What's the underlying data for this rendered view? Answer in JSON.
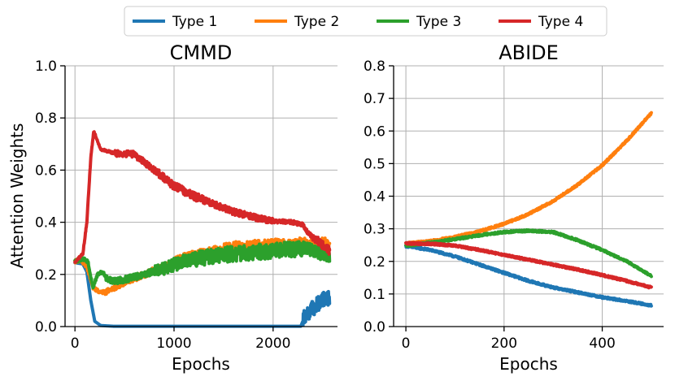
{
  "chart_data": [
    {
      "type": "line",
      "title": "CMMD",
      "xlabel": "Epochs",
      "ylabel": "Attention Weights",
      "xlim": [
        -100,
        2650
      ],
      "ylim": [
        0.0,
        1.0
      ],
      "xticks": [
        0,
        1000,
        2000
      ],
      "xtick_labels": [
        "0",
        "1000",
        "2000"
      ],
      "yticks": [
        0.0,
        0.2,
        0.4,
        0.6,
        0.8,
        1.0
      ],
      "ytick_labels": [
        "0.0",
        "0.2",
        "0.4",
        "0.6",
        "0.8",
        "1.0"
      ],
      "grid": true,
      "series": [
        {
          "name": "Type 1",
          "noise": [
            [
              2300,
              0.03
            ]
          ],
          "points": [
            [
              0,
              0.245
            ],
            [
              80,
              0.24
            ],
            [
              120,
              0.21
            ],
            [
              160,
              0.1
            ],
            [
              200,
              0.02
            ],
            [
              260,
              0.004
            ],
            [
              400,
              0.001
            ],
            [
              1000,
              0.001
            ],
            [
              2000,
              0.001
            ],
            [
              2280,
              0.001
            ],
            [
              2320,
              0.04
            ],
            [
              2400,
              0.07
            ],
            [
              2500,
              0.1
            ],
            [
              2570,
              0.115
            ]
          ]
        },
        {
          "name": "Type 2",
          "noise": [
            [
              0,
              0.006
            ],
            [
              300,
              0.012
            ],
            [
              1000,
              0.02
            ],
            [
              1500,
              0.025
            ]
          ],
          "points": [
            [
              0,
              0.25
            ],
            [
              60,
              0.255
            ],
            [
              120,
              0.23
            ],
            [
              180,
              0.15
            ],
            [
              260,
              0.13
            ],
            [
              350,
              0.14
            ],
            [
              500,
              0.17
            ],
            [
              700,
              0.2
            ],
            [
              900,
              0.23
            ],
            [
              1100,
              0.26
            ],
            [
              1300,
              0.28
            ],
            [
              1600,
              0.3
            ],
            [
              2000,
              0.31
            ],
            [
              2300,
              0.315
            ],
            [
              2450,
              0.315
            ],
            [
              2570,
              0.315
            ]
          ]
        },
        {
          "name": "Type 3",
          "noise": [
            [
              0,
              0.006
            ],
            [
              300,
              0.012
            ],
            [
              800,
              0.025
            ],
            [
              1200,
              0.03
            ],
            [
              2300,
              0.025
            ]
          ],
          "points": [
            [
              0,
              0.25
            ],
            [
              80,
              0.26
            ],
            [
              130,
              0.25
            ],
            [
              180,
              0.15
            ],
            [
              230,
              0.2
            ],
            [
              280,
              0.21
            ],
            [
              330,
              0.18
            ],
            [
              400,
              0.175
            ],
            [
              500,
              0.18
            ],
            [
              700,
              0.2
            ],
            [
              900,
              0.225
            ],
            [
              1100,
              0.25
            ],
            [
              1300,
              0.265
            ],
            [
              1600,
              0.28
            ],
            [
              2000,
              0.29
            ],
            [
              2300,
              0.3
            ],
            [
              2450,
              0.285
            ],
            [
              2570,
              0.27
            ]
          ]
        },
        {
          "name": "Type 4",
          "noise": [
            [
              0,
              0.004
            ],
            [
              400,
              0.012
            ],
            [
              800,
              0.015
            ],
            [
              1300,
              0.012
            ],
            [
              2000,
              0.007
            ],
            [
              2400,
              0.015
            ]
          ],
          "points": [
            [
              0,
              0.245
            ],
            [
              80,
              0.28
            ],
            [
              120,
              0.4
            ],
            [
              160,
              0.65
            ],
            [
              190,
              0.75
            ],
            [
              220,
              0.72
            ],
            [
              260,
              0.68
            ],
            [
              400,
              0.665
            ],
            [
              600,
              0.66
            ],
            [
              700,
              0.63
            ],
            [
              900,
              0.57
            ],
            [
              1000,
              0.54
            ],
            [
              1200,
              0.5
            ],
            [
              1400,
              0.47
            ],
            [
              1600,
              0.44
            ],
            [
              1800,
              0.42
            ],
            [
              2000,
              0.405
            ],
            [
              2200,
              0.4
            ],
            [
              2300,
              0.39
            ],
            [
              2350,
              0.36
            ],
            [
              2450,
              0.33
            ],
            [
              2570,
              0.29
            ]
          ]
        }
      ]
    },
    {
      "type": "line",
      "title": "ABIDE",
      "xlabel": "Epochs",
      "ylabel": "",
      "xlim": [
        -25,
        525
      ],
      "ylim": [
        0.0,
        0.8
      ],
      "xticks": [
        0,
        200,
        400
      ],
      "xtick_labels": [
        "0",
        "200",
        "400"
      ],
      "yticks": [
        0.0,
        0.1,
        0.2,
        0.3,
        0.4,
        0.5,
        0.6,
        0.7,
        0.8
      ],
      "ytick_labels": [
        "0.0",
        "0.1",
        "0.2",
        "0.3",
        "0.4",
        "0.5",
        "0.6",
        "0.7",
        "0.8"
      ],
      "grid": true,
      "series": [
        {
          "name": "Type 1",
          "noise": [
            [
              0,
              0.003
            ]
          ],
          "points": [
            [
              0,
              0.247
            ],
            [
              50,
              0.235
            ],
            [
              100,
              0.215
            ],
            [
              150,
              0.19
            ],
            [
              200,
              0.165
            ],
            [
              250,
              0.14
            ],
            [
              300,
              0.12
            ],
            [
              350,
              0.105
            ],
            [
              400,
              0.09
            ],
            [
              450,
              0.078
            ],
            [
              500,
              0.065
            ]
          ]
        },
        {
          "name": "Type 2",
          "noise": [
            [
              0,
              0.003
            ]
          ],
          "points": [
            [
              0,
              0.255
            ],
            [
              50,
              0.262
            ],
            [
              100,
              0.275
            ],
            [
              150,
              0.292
            ],
            [
              200,
              0.315
            ],
            [
              250,
              0.345
            ],
            [
              300,
              0.385
            ],
            [
              350,
              0.435
            ],
            [
              400,
              0.495
            ],
            [
              450,
              0.57
            ],
            [
              500,
              0.655
            ]
          ]
        },
        {
          "name": "Type 3",
          "noise": [
            [
              0,
              0.003
            ]
          ],
          "points": [
            [
              0,
              0.248
            ],
            [
              50,
              0.258
            ],
            [
              100,
              0.268
            ],
            [
              150,
              0.28
            ],
            [
              200,
              0.29
            ],
            [
              250,
              0.294
            ],
            [
              300,
              0.29
            ],
            [
              350,
              0.265
            ],
            [
              400,
              0.235
            ],
            [
              450,
              0.2
            ],
            [
              500,
              0.155
            ]
          ]
        },
        {
          "name": "Type 4",
          "noise": [
            [
              0,
              0.003
            ]
          ],
          "points": [
            [
              0,
              0.255
            ],
            [
              50,
              0.254
            ],
            [
              100,
              0.248
            ],
            [
              150,
              0.235
            ],
            [
              200,
              0.22
            ],
            [
              250,
              0.205
            ],
            [
              300,
              0.19
            ],
            [
              350,
              0.175
            ],
            [
              400,
              0.158
            ],
            [
              450,
              0.14
            ],
            [
              500,
              0.12
            ]
          ]
        }
      ]
    }
  ],
  "legend": {
    "position": "top-center",
    "entries": [
      {
        "label": "Type 1",
        "color": "#1f77b4"
      },
      {
        "label": "Type 2",
        "color": "#ff7f0e"
      },
      {
        "label": "Type 3",
        "color": "#2ca02c"
      },
      {
        "label": "Type 4",
        "color": "#d62728"
      }
    ]
  },
  "style": {
    "grid_color": "#b0b0b0",
    "axis_color": "#000000"
  }
}
